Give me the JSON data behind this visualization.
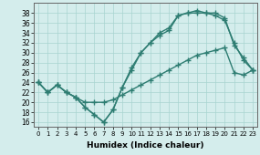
{
  "line1_top": {
    "x": [
      0,
      1,
      2,
      3,
      4,
      5,
      6,
      7,
      8,
      9,
      10,
      11,
      12,
      13,
      14,
      15,
      16,
      17,
      18,
      19,
      20,
      21,
      22,
      23
    ],
    "y": [
      24,
      22,
      23.5,
      22,
      21,
      19,
      17.5,
      16,
      18.5,
      23,
      27,
      30,
      32,
      33.5,
      34.5,
      37.5,
      38,
      38,
      38,
      38,
      37,
      31.5,
      29,
      26.5
    ]
  },
  "line2_mid": {
    "x": [
      0,
      1,
      2,
      3,
      4,
      5,
      6,
      7,
      8,
      9,
      10,
      11,
      12,
      13,
      14,
      15,
      16,
      17,
      18,
      19,
      20,
      21,
      22,
      23
    ],
    "y": [
      24,
      22,
      23.5,
      22,
      21,
      19,
      17.5,
      16,
      18.5,
      23,
      26.5,
      30,
      32,
      34,
      35,
      37.5,
      38,
      38.5,
      38,
      37.5,
      36.5,
      32,
      28.5,
      26.5
    ]
  },
  "line3_bot": {
    "x": [
      0,
      1,
      2,
      3,
      4,
      5,
      6,
      7,
      8,
      9,
      10,
      11,
      12,
      13,
      14,
      15,
      16,
      17,
      18,
      19,
      20,
      21,
      22,
      23
    ],
    "y": [
      24,
      22,
      23.5,
      22,
      21,
      20,
      20,
      20,
      20.5,
      21.5,
      22.5,
      23.5,
      24.5,
      25.5,
      26.5,
      27.5,
      28.5,
      29.5,
      30,
      30.5,
      31,
      26,
      25.5,
      26.5
    ]
  },
  "color": "#2e7d72",
  "bg_color": "#d4edec",
  "grid_color": "#a8d4d0",
  "xlabel": "Humidex (Indice chaleur)",
  "ylim": [
    15,
    40
  ],
  "xlim": [
    -0.5,
    23.5
  ],
  "yticks": [
    16,
    18,
    20,
    22,
    24,
    26,
    28,
    30,
    32,
    34,
    36,
    38
  ],
  "xticks": [
    0,
    1,
    2,
    3,
    4,
    5,
    6,
    7,
    8,
    9,
    10,
    11,
    12,
    13,
    14,
    15,
    16,
    17,
    18,
    19,
    20,
    21,
    22,
    23
  ],
  "marker": "+",
  "markersize": 4,
  "linewidth": 1.0
}
